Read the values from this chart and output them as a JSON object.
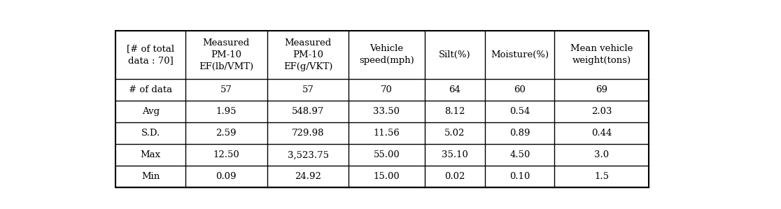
{
  "col_headers": [
    "[# of total\ndata : 70]",
    "Measured\nPM-10\nEF(lb/VMT)",
    "Measured\nPM-10\nEF(g/VKT)",
    "Vehicle\nspeed(mph)",
    "Silt(%)",
    "Moisture(%)",
    "Mean vehicle\nweight(tons)"
  ],
  "row_labels": [
    "# of data",
    "Avg",
    "S.D.",
    "Max",
    "Min"
  ],
  "data": [
    [
      "57",
      "57",
      "70",
      "64",
      "60",
      "69"
    ],
    [
      "1.95",
      "548.97",
      "33.50",
      "8.12",
      "0.54",
      "2.03"
    ],
    [
      "2.59",
      "729.98",
      "11.56",
      "5.02",
      "0.89",
      "0.44"
    ],
    [
      "12.50",
      "3,523.75",
      "55.00",
      "35.10",
      "4.50",
      "3.0"
    ],
    [
      "0.09",
      "24.92",
      "15.00",
      "0.02",
      "0.10",
      "1.5"
    ]
  ],
  "bg_color": "#ffffff",
  "text_color": "#000000",
  "line_color": "#000000",
  "header_font_size": 9.5,
  "cell_font_size": 9.5,
  "fig_width": 11.16,
  "fig_height": 2.99
}
